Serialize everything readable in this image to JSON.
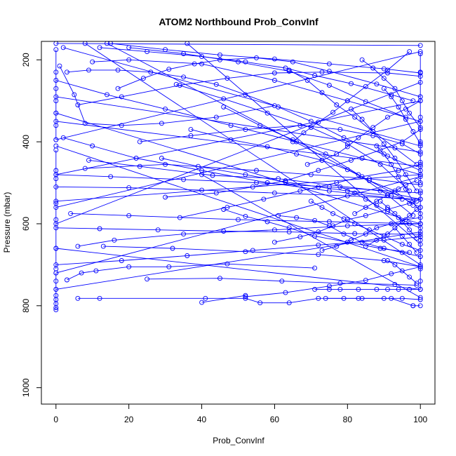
{
  "chart_data": {
    "type": "line",
    "title": "ATOM2 Northbound Prob_ConvInf",
    "xlabel": "Prob_ConvInf",
    "ylabel": "Pressure (mbar)",
    "xlim": [
      -4,
      104
    ],
    "ylim": [
      1040,
      155
    ],
    "y_reversed": true,
    "xticks": [
      0,
      20,
      40,
      60,
      80,
      100
    ],
    "yticks": [
      200,
      400,
      600,
      800,
      1000
    ],
    "xtick_labels": [
      "0",
      "20",
      "40",
      "60",
      "80",
      "100"
    ],
    "ytick_labels": [
      "200",
      "400",
      "600",
      "800",
      "1000"
    ],
    "grid": false,
    "marker": "open-circle",
    "series_color": "#0000ff",
    "series": [
      {
        "x": [
          0,
          0,
          0,
          0,
          0,
          0,
          0
        ],
        "y": [
          175,
          230,
          270,
          300,
          330,
          360,
          395
        ]
      },
      {
        "x": [
          0,
          0,
          0,
          0,
          0,
          0,
          0
        ],
        "y": [
          420,
          470,
          490,
          550,
          590,
          660,
          710
        ]
      },
      {
        "x": [
          0,
          0,
          0,
          0,
          0,
          0,
          0,
          0
        ],
        "y": [
          720,
          740,
          760,
          775,
          785,
          795,
          805,
          810
        ]
      },
      {
        "x": [
          0,
          100
        ],
        "y": [
          160,
          165
        ]
      },
      {
        "x": [
          100,
          100,
          100,
          100,
          100,
          100,
          100
        ],
        "y": [
          185,
          230,
          290,
          340,
          400,
          450,
          500
        ]
      },
      {
        "x": [
          100,
          100,
          100,
          100,
          100,
          100,
          100,
          100
        ],
        "y": [
          520,
          560,
          600,
          640,
          680,
          710,
          740,
          760
        ]
      },
      {
        "x": [
          98,
          100
        ],
        "y": [
          800,
          800
        ]
      },
      {
        "x": [
          1,
          5,
          8,
          18,
          29,
          44,
          60
        ],
        "y": [
          215,
          285,
          355,
          360,
          355,
          340,
          312
        ]
      },
      {
        "x": [
          2,
          10,
          22,
          40,
          58,
          75,
          95
        ],
        "y": [
          390,
          410,
          440,
          470,
          500,
          520,
          540
        ]
      },
      {
        "x": [
          9,
          23,
          43,
          61,
          89,
          100
        ],
        "y": [
          445,
          460,
          482,
          490,
          520,
          540
        ]
      },
      {
        "x": [
          8,
          30,
          55,
          70,
          86,
          100
        ],
        "y": [
          465,
          455,
          470,
          480,
          490,
          505
        ]
      },
      {
        "x": [
          4,
          20,
          50,
          75,
          100
        ],
        "y": [
          575,
          580,
          590,
          595,
          600
        ]
      },
      {
        "x": [
          6,
          16,
          35,
          60,
          80,
          100
        ],
        "y": [
          655,
          640,
          625,
          615,
          605,
          600
        ]
      },
      {
        "x": [
          13,
          32,
          52,
          72,
          90,
          100
        ],
        "y": [
          655,
          660,
          668,
          675,
          690,
          705
        ]
      },
      {
        "x": [
          25,
          45,
          62,
          78,
          93,
          99
        ],
        "y": [
          735,
          733,
          740,
          745,
          748,
          750
        ]
      },
      {
        "x": [
          3,
          7,
          11,
          20,
          31,
          47,
          71
        ],
        "y": [
          737,
          720,
          715,
          705,
          705,
          698,
          708
        ]
      },
      {
        "x": [
          6,
          12,
          41,
          52,
          56,
          64,
          72,
          83,
          92,
          98
        ],
        "y": [
          782,
          782,
          782,
          782,
          793,
          793,
          782,
          782,
          782,
          800
        ]
      },
      {
        "x": [
          71,
          75,
          78,
          83,
          88,
          91,
          94,
          97,
          100
        ],
        "y": [
          760,
          760,
          760,
          760,
          760,
          760,
          760,
          760,
          760
        ]
      },
      {
        "x": [
          74,
          79,
          84,
          90,
          95,
          100
        ],
        "y": [
          782,
          782,
          782,
          782,
          782,
          785
        ]
      },
      {
        "x": [
          40,
          52
        ],
        "y": [
          792,
          775
        ]
      },
      {
        "x": [
          52,
          63,
          75,
          85,
          92,
          100
        ],
        "y": [
          778,
          768,
          752,
          738,
          722,
          705
        ]
      },
      {
        "x": [
          6,
          18,
          34,
          47,
          60,
          73,
          91,
          100
        ],
        "y": [
          310,
          290,
          262,
          245,
          232,
          230,
          232,
          240
        ]
      },
      {
        "x": [
          10,
          20,
          40,
          60,
          80,
          100
        ],
        "y": [
          205,
          200,
          210,
          250,
          300,
          350
        ]
      },
      {
        "x": [
          17,
          24,
          31,
          38,
          45,
          55,
          65,
          75,
          88,
          100
        ],
        "y": [
          270,
          245,
          223,
          210,
          200,
          195,
          205,
          228,
          259,
          290
        ]
      },
      {
        "x": [
          3,
          9,
          17,
          26,
          35,
          44,
          52,
          61,
          70,
          79,
          91,
          100
        ],
        "y": [
          230,
          225,
          225,
          230,
          242,
          260,
          285,
          315,
          350,
          390,
          435,
          470
        ]
      },
      {
        "x": [
          12,
          25,
          40,
          52,
          63,
          71,
          81,
          92,
          98
        ],
        "y": [
          170,
          180,
          192,
          205,
          220,
          238,
          258,
          285,
          300
        ]
      },
      {
        "x": [
          20,
          35,
          50,
          64,
          75,
          85,
          96
        ],
        "y": [
          170,
          185,
          205,
          228,
          262,
          302,
          340
        ]
      },
      {
        "x": [
          23,
          37,
          52,
          67,
          78,
          87,
          95,
          100
        ],
        "y": [
          400,
          385,
          370,
          360,
          370,
          385,
          405,
          430
        ]
      },
      {
        "x": [
          29,
          39,
          52,
          63,
          72,
          80,
          92,
          99
        ],
        "y": [
          440,
          460,
          480,
          498,
          510,
          520,
          532,
          545
        ]
      },
      {
        "x": [
          33,
          46,
          58,
          70,
          80,
          89,
          97
        ],
        "y": [
          260,
          295,
          330,
          365,
          405,
          455,
          520
        ]
      },
      {
        "x": [
          30,
          44,
          54,
          63,
          72,
          81,
          89,
          95,
          100
        ],
        "y": [
          535,
          525,
          510,
          495,
          470,
          445,
          420,
          400,
          370
        ]
      },
      {
        "x": [
          34,
          47,
          57,
          67,
          77,
          84,
          94,
          100
        ],
        "y": [
          585,
          560,
          540,
          520,
          500,
          485,
          470,
          455
        ]
      },
      {
        "x": [
          46,
          52,
          58,
          64,
          71,
          80,
          89,
          97
        ],
        "y": [
          565,
          582,
          595,
          610,
          630,
          645,
          660,
          670
        ]
      },
      {
        "x": [
          46,
          56,
          65,
          74,
          83,
          91,
          98
        ],
        "y": [
          315,
          360,
          395,
          430,
          480,
          530,
          580
        ]
      },
      {
        "x": [
          37,
          48,
          58,
          66,
          73,
          80,
          86,
          93,
          98
        ],
        "y": [
          370,
          395,
          412,
          430,
          445,
          468,
          495,
          520,
          555
        ]
      },
      {
        "x": [
          60,
          67,
          72,
          76,
          80,
          85,
          91,
          97,
          100
        ],
        "y": [
          645,
          632,
          620,
          605,
          590,
          580,
          565,
          550,
          540
        ]
      },
      {
        "x": [
          61,
          66,
          71,
          75,
          79,
          84,
          90,
          95,
          100
        ],
        "y": [
          580,
          585,
          592,
          605,
          625,
          645,
          660,
          670,
          680
        ]
      },
      {
        "x": [
          65,
          68,
          72,
          76,
          80,
          85,
          91,
          97
        ],
        "y": [
          400,
          378,
          352,
          328,
          300,
          265,
          225,
          180
        ]
      },
      {
        "x": [
          64,
          69,
          73,
          77,
          82,
          87,
          93,
          99
        ],
        "y": [
          225,
          250,
          280,
          310,
          340,
          375,
          415,
          455
        ]
      },
      {
        "x": [
          69,
          73,
          77,
          80,
          83,
          87,
          91,
          96,
          100
        ],
        "y": [
          455,
          445,
          430,
          412,
          390,
          365,
          340,
          320,
          300
        ]
      },
      {
        "x": [
          70,
          73,
          76,
          79,
          82,
          86,
          90,
          95,
          100
        ],
        "y": [
          545,
          560,
          575,
          588,
          600,
          615,
          630,
          650,
          665
        ]
      },
      {
        "x": [
          73,
          77,
          81,
          85,
          88,
          92,
          96,
          100
        ],
        "y": [
          665,
          655,
          640,
          625,
          610,
          600,
          590,
          585
        ]
      },
      {
        "x": [
          78,
          82,
          85,
          88,
          91,
          94,
          97,
          100
        ],
        "y": [
          510,
          525,
          540,
          555,
          570,
          585,
          600,
          610
        ]
      },
      {
        "x": [
          81,
          84,
          87,
          90,
          93,
          96,
          99
        ],
        "y": [
          320,
          345,
          375,
          405,
          440,
          480,
          520
        ]
      },
      {
        "x": [
          82,
          85,
          88,
          91,
          94,
          96,
          99
        ],
        "y": [
          575,
          560,
          545,
          530,
          515,
          505,
          495
        ]
      },
      {
        "x": [
          84,
          87,
          90,
          93,
          95,
          97,
          100
        ],
        "y": [
          200,
          220,
          245,
          270,
          300,
          330,
          365
        ]
      },
      {
        "x": [
          85,
          88,
          91,
          93,
          95,
          97,
          99
        ],
        "y": [
          655,
          640,
          625,
          610,
          595,
          580,
          565
        ]
      },
      {
        "x": [
          88,
          90,
          92,
          94,
          96,
          98,
          100
        ],
        "y": [
          410,
          430,
          455,
          485,
          515,
          545,
          575
        ]
      },
      {
        "x": [
          89,
          91,
          93,
          95,
          97,
          99
        ],
        "y": [
          545,
          560,
          575,
          595,
          615,
          635
        ]
      },
      {
        "x": [
          90,
          92,
          94,
          96,
          98,
          100
        ],
        "y": [
          270,
          290,
          315,
          345,
          375,
          405
        ]
      },
      {
        "x": [
          91,
          93,
          95,
          97,
          99
        ],
        "y": [
          690,
          700,
          715,
          730,
          745
        ]
      },
      {
        "x": [
          93,
          95,
          97,
          99
        ],
        "y": [
          610,
          630,
          650,
          670
        ]
      },
      {
        "x": [
          0,
          12,
          28,
          46,
          64,
          82,
          100
        ],
        "y": [
          610,
          612,
          615,
          618,
          620,
          624,
          626
        ]
      },
      {
        "x": [
          0,
          18,
          36,
          54,
          72,
          90,
          100
        ],
        "y": [
          700,
          690,
          678,
          665,
          652,
          640,
          632
        ]
      },
      {
        "x": [
          0,
          14,
          30,
          48,
          66,
          84,
          100
        ],
        "y": [
          250,
          285,
          320,
          360,
          400,
          440,
          480
        ]
      },
      {
        "x": [
          0,
          15,
          35,
          55,
          75,
          100
        ],
        "y": [
          480,
          485,
          492,
          500,
          510,
          525
        ]
      },
      {
        "x": [
          0,
          20,
          40,
          60,
          80,
          100
        ],
        "y": [
          510,
          512,
          518,
          525,
          532,
          540
        ]
      },
      {
        "x": [
          15,
          30,
          45,
          60,
          75,
          90,
          100
        ],
        "y": [
          160,
          175,
          188,
          198,
          210,
          222,
          232
        ]
      },
      {
        "x": [
          0,
          100
        ],
        "y": [
          395,
          180
        ]
      },
      {
        "x": [
          0,
          100
        ],
        "y": [
          330,
          600
        ]
      },
      {
        "x": [
          0,
          100
        ],
        "y": [
          410,
          705
        ]
      },
      {
        "x": [
          0,
          100
        ],
        "y": [
          720,
          485
        ]
      },
      {
        "x": [
          0,
          100
        ],
        "y": [
          560,
          350
        ]
      },
      {
        "x": [
          0,
          100
        ],
        "y": [
          660,
          760
        ]
      },
      {
        "x": [
          2,
          100
        ],
        "y": [
          170,
          410
        ]
      },
      {
        "x": [
          8,
          100
        ],
        "y": [
          160,
          700
        ]
      },
      {
        "x": [
          14,
          100
        ],
        "y": [
          160,
          560
        ]
      },
      {
        "x": [
          36,
          100
        ],
        "y": [
          160,
          650
        ]
      },
      {
        "x": [
          40,
          100
        ],
        "y": [
          480,
          780
        ]
      },
      {
        "x": [
          0,
          100
        ],
        "y": [
          600,
          255
        ]
      },
      {
        "x": [
          0,
          100
        ],
        "y": [
          480,
          300
        ]
      },
      {
        "x": [
          0,
          100
        ],
        "y": [
          545,
          480
        ]
      },
      {
        "x": [
          0,
          100
        ],
        "y": [
          760,
          620
        ]
      },
      {
        "x": [
          0,
          100
        ],
        "y": [
          350,
          460
        ]
      },
      {
        "x": [
          0,
          100
        ],
        "y": [
          290,
          425
        ]
      }
    ]
  }
}
